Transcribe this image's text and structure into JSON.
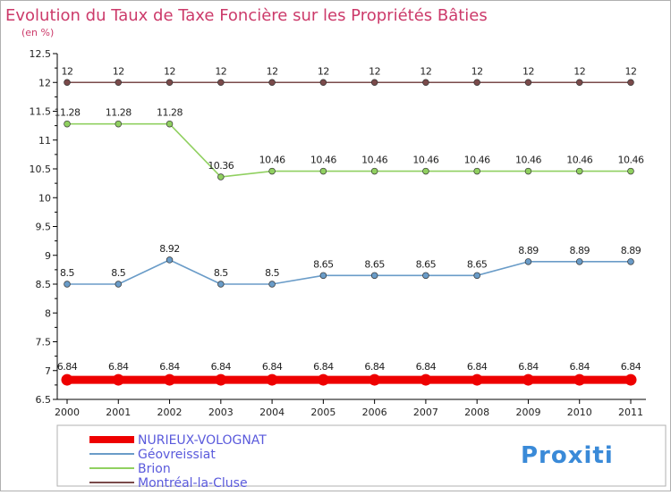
{
  "chart_data": {
    "type": "line",
    "title": "Evolution du Taux de Taxe Foncière sur les Propriétés Bâties",
    "subtitle": "(en %)",
    "xlabel": "",
    "ylabel": "",
    "ylim": [
      6.5,
      12.5
    ],
    "x": [
      "2000",
      "2001",
      "2002",
      "2003",
      "2004",
      "2005",
      "2006",
      "2007",
      "2008",
      "2009",
      "2010",
      "2011"
    ],
    "y_ticks": [
      "6.5",
      "7",
      "7.5",
      "8",
      "8.5",
      "9",
      "9.5",
      "10",
      "10.5",
      "11",
      "11.5",
      "12",
      "12.5"
    ],
    "series": [
      {
        "name": "Montréal-la-Cluse",
        "color": "#7a4a4a",
        "values": [
          12,
          12,
          12,
          12,
          12,
          12,
          12,
          12,
          12,
          12,
          12,
          12
        ],
        "labels": [
          "12",
          "12",
          "12",
          "12",
          "12",
          "12",
          "12",
          "12",
          "12",
          "12",
          "12",
          "12"
        ]
      },
      {
        "name": "Brion",
        "color": "#90d060",
        "values": [
          11.28,
          11.28,
          11.28,
          10.36,
          10.46,
          10.46,
          10.46,
          10.46,
          10.46,
          10.46,
          10.46,
          10.46
        ],
        "labels": [
          "11.28",
          "11.28",
          "11.28",
          "10.36",
          "10.46",
          "10.46",
          "10.46",
          "10.46",
          "10.46",
          "10.46",
          "10.46",
          "10.46"
        ]
      },
      {
        "name": "Géovreissiat",
        "color": "#6a9cc8",
        "values": [
          8.5,
          8.5,
          8.92,
          8.5,
          8.5,
          8.65,
          8.65,
          8.65,
          8.65,
          8.89,
          8.89,
          8.89
        ],
        "labels": [
          "8.5",
          "8.5",
          "8.92",
          "8.5",
          "8.5",
          "8.65",
          "8.65",
          "8.65",
          "8.65",
          "8.89",
          "8.89",
          "8.89"
        ]
      },
      {
        "name": "NURIEUX-VOLOGNAT",
        "color": "#ee0000",
        "values": [
          6.84,
          6.84,
          6.84,
          6.84,
          6.84,
          6.84,
          6.84,
          6.84,
          6.84,
          6.84,
          6.84,
          6.84
        ],
        "labels": [
          "6.84",
          "6.84",
          "6.84",
          "6.84",
          "6.84",
          "6.84",
          "6.84",
          "6.84",
          "6.84",
          "6.84",
          "6.84",
          "6.84"
        ]
      }
    ],
    "legend": {
      "placement": "bottom-left",
      "entries": [
        "NURIEUX-VOLOGNAT",
        "Géovreissiat",
        "Brion",
        "Montréal-la-Cluse"
      ]
    },
    "grid": false
  },
  "branding": {
    "logo_text": "Proxiti"
  },
  "colors": {
    "title": "#cc3a6a",
    "legend_text": "#5a5adc",
    "axis": "#000000",
    "label_text": "#222222"
  }
}
